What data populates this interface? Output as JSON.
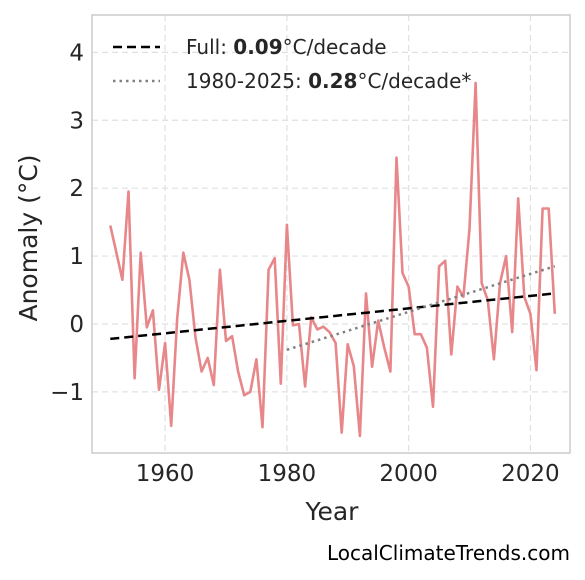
{
  "chart_data": {
    "type": "line",
    "title": "",
    "xlabel": "Year",
    "ylabel": "Anomaly (°C)",
    "xlim": [
      1948,
      2026.5
    ],
    "ylim": [
      -1.9,
      4.55
    ],
    "x_ticks": [
      1960,
      1980,
      2000,
      2020
    ],
    "y_ticks": [
      4,
      3,
      2,
      1,
      0,
      -1
    ],
    "y_tick_labels": [
      "4",
      "3",
      "2",
      "1",
      "0",
      "−1"
    ],
    "x_tick_labels": [
      "1960",
      "1980",
      "2000",
      "2020"
    ],
    "grid": true,
    "legend_position": "top-left",
    "series": [
      {
        "color": "#e8878a",
        "x": [
          1951,
          1952,
          1953,
          1954,
          1955,
          1956,
          1957,
          1958,
          1959,
          1960,
          1961,
          1962,
          1963,
          1964,
          1965,
          1966,
          1967,
          1968,
          1969,
          1970,
          1971,
          1972,
          1973,
          1974,
          1975,
          1976,
          1977,
          1978,
          1979,
          1980,
          1981,
          1982,
          1983,
          1984,
          1985,
          1986,
          1987,
          1988,
          1989,
          1990,
          1991,
          1992,
          1993,
          1994,
          1995,
          1996,
          1997,
          1998,
          1999,
          2000,
          2001,
          2002,
          2003,
          2004,
          2005,
          2006,
          2007,
          2008,
          2009,
          2010,
          2011,
          2012,
          2013,
          2014,
          2015,
          2016,
          2017,
          2018,
          2019,
          2020,
          2021,
          2022,
          2023,
          2024
        ],
        "y": [
          1.45,
          1.05,
          0.65,
          1.95,
          -0.8,
          1.05,
          -0.05,
          0.2,
          -0.97,
          -0.28,
          -1.5,
          0.08,
          1.05,
          0.65,
          -0.2,
          -0.7,
          -0.5,
          -0.9,
          0.8,
          -0.25,
          -0.18,
          -0.7,
          -1.05,
          -1.0,
          -0.52,
          -1.52,
          0.8,
          0.97,
          -0.88,
          1.46,
          -0.02,
          0.0,
          -0.92,
          0.1,
          -0.08,
          -0.04,
          -0.12,
          -0.28,
          -1.6,
          -0.3,
          -0.62,
          -1.65,
          0.45,
          -0.63,
          0.05,
          -0.35,
          -0.7,
          2.45,
          0.75,
          0.55,
          -0.15,
          -0.15,
          -0.35,
          -1.22,
          0.85,
          0.93,
          -0.45,
          0.55,
          0.4,
          1.4,
          3.55,
          0.6,
          0.35,
          -0.52,
          0.6,
          1.0,
          -0.12,
          1.85,
          0.4,
          0.15,
          -0.68,
          1.7,
          1.7,
          0.15
        ]
      },
      {
        "name": "Full: 0.09°C/decade",
        "color": "#000000",
        "dash": "dashed",
        "x": [
          1951,
          2024
        ],
        "y": [
          -0.22,
          0.45
        ]
      },
      {
        "name": "1980-2025: 0.28°C/decade*",
        "color": "#808080",
        "dash": "dotted",
        "x": [
          1980,
          2024
        ],
        "y": [
          -0.38,
          0.85
        ]
      }
    ]
  },
  "legend": {
    "items": [
      {
        "prefix": "Full: ",
        "value": "0.09",
        "suffix": "°C/decade",
        "color": "#000000",
        "dash": "dashed"
      },
      {
        "prefix": "1980-2025: ",
        "value": "0.28",
        "suffix": "°C/decade*",
        "color": "#808080",
        "dash": "dotted"
      }
    ]
  },
  "credit": "LocalClimateTrends.com"
}
